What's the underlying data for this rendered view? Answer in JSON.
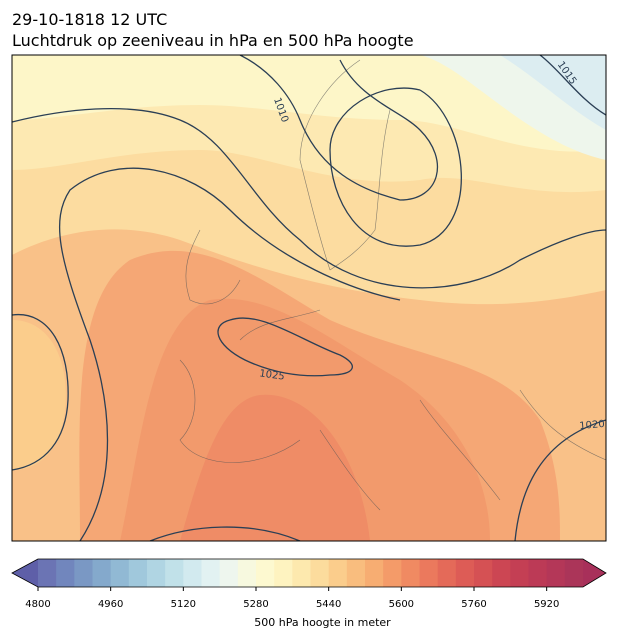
{
  "header": {
    "title_line1": "29-10-1818 12 UTC",
    "title_line2": "Luchtdruk op zeeniveau in hPa en 500 hPa hoogte"
  },
  "map": {
    "contour_labels": [
      {
        "label": "1010"
      },
      {
        "label": "1015"
      },
      {
        "label": "1025"
      },
      {
        "label": "1020"
      }
    ]
  },
  "colorbar": {
    "label": "500 hPa hoogte in meter",
    "lim": [
      4800,
      6000
    ],
    "ticks": [
      4800,
      4960,
      5120,
      5280,
      5440,
      5600,
      5760,
      5920
    ],
    "colors": [
      "#6b74b4",
      "#7186bd",
      "#7a98c4",
      "#84a9cc",
      "#91b9d4",
      "#a0c8dc",
      "#b0d5e3",
      "#c1e1e9",
      "#d2eaef",
      "#e2f2f2",
      "#eef6ee",
      "#f7f9df",
      "#fdf9d0",
      "#fef3c0",
      "#fde9ae",
      "#fcdc9d",
      "#fbcd8c",
      "#f9bd7e",
      "#f7ad72",
      "#f49b69",
      "#f08a62",
      "#eb795d",
      "#e46a59",
      "#dd5c56",
      "#d55154",
      "#cc4653",
      "#c43f54",
      "#bc3a56",
      "#b43758",
      "#ab3559"
    ],
    "extend_colors": [
      "#5e5fa8",
      "#a8305a"
    ]
  }
}
